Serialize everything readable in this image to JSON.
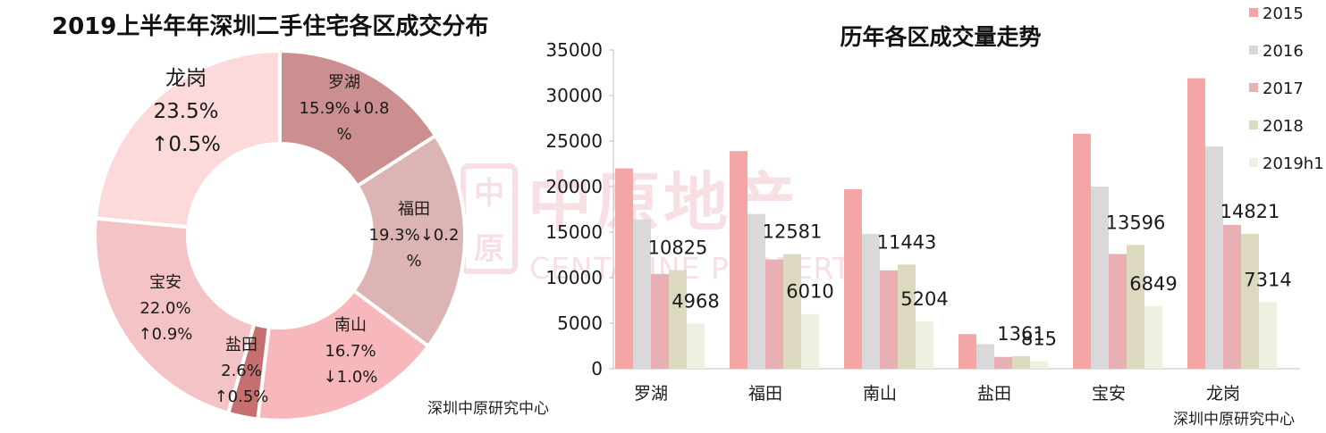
{
  "chart_data": [
    {
      "type": "pie",
      "variant": "donut",
      "title": "2019上半年年深圳二手住宅各区成交分布",
      "source": "深圳中原研究中心",
      "slices": [
        {
          "name": "罗湖",
          "value": 15.9,
          "pct": "15.9%",
          "change": "↓0.8",
          "change_unit": "%",
          "color": "#cc8f8f"
        },
        {
          "name": "福田",
          "value": 19.3,
          "pct": "19.3%",
          "change": "↓0.2",
          "change_unit": "%",
          "color": "#ddb4b4"
        },
        {
          "name": "南山",
          "value": 16.7,
          "pct": "16.7%",
          "change": "↓1.0%",
          "change_unit": "",
          "color": "#f8b7bb"
        },
        {
          "name": "盐田",
          "value": 2.6,
          "pct": "2.6%",
          "change": "↑0.5%",
          "change_unit": "",
          "color": "#c56f71"
        },
        {
          "name": "宝安",
          "value": 22.0,
          "pct": "22.0%",
          "change": "↑0.9%",
          "change_unit": "",
          "color": "#f4c3c6"
        },
        {
          "name": "龙岗",
          "value": 23.5,
          "pct": "23.5%",
          "change": "↑0.5%",
          "change_unit": "",
          "color": "#fcdadc"
        }
      ]
    },
    {
      "type": "bar",
      "title": "历年各区成交量走势",
      "source": "深圳中原研究中心",
      "categories": [
        "罗湖",
        "福田",
        "南山",
        "盐田",
        "宝安",
        "龙岗"
      ],
      "ylim": [
        0,
        35000
      ],
      "yticks": [
        "0",
        "5000",
        "10000",
        "15000",
        "20000",
        "25000",
        "30000",
        "35000"
      ],
      "legend_position": "right",
      "grid": false,
      "series": [
        {
          "name": "2015",
          "color": "#f4a6a6",
          "values": [
            22000,
            23900,
            19700,
            3800,
            25800,
            31900
          ]
        },
        {
          "name": "2016",
          "color": "#d9d9d9",
          "values": [
            16400,
            17000,
            14800,
            2700,
            20000,
            24400
          ]
        },
        {
          "name": "2017",
          "color": "#e8b0b3",
          "values": [
            10400,
            12000,
            10800,
            1300,
            12600,
            15800
          ]
        },
        {
          "name": "2018",
          "color": "#ddd8c0",
          "values": [
            10825,
            12581,
            11443,
            1361,
            13596,
            14821
          ]
        },
        {
          "name": "2019h1",
          "color": "#efefe2",
          "values": [
            4968,
            6010,
            5204,
            815,
            6849,
            7314
          ]
        }
      ],
      "data_labels": {
        "2018": [
          "10825",
          "12581",
          "11443",
          "1361",
          "13596",
          "14821"
        ],
        "2019h1": [
          "4968",
          "6010",
          "5204",
          "815",
          "6849",
          "7314"
        ]
      }
    }
  ],
  "watermark": {
    "cn": "中原地产",
    "en": "CENTALINE PROPERTY"
  }
}
